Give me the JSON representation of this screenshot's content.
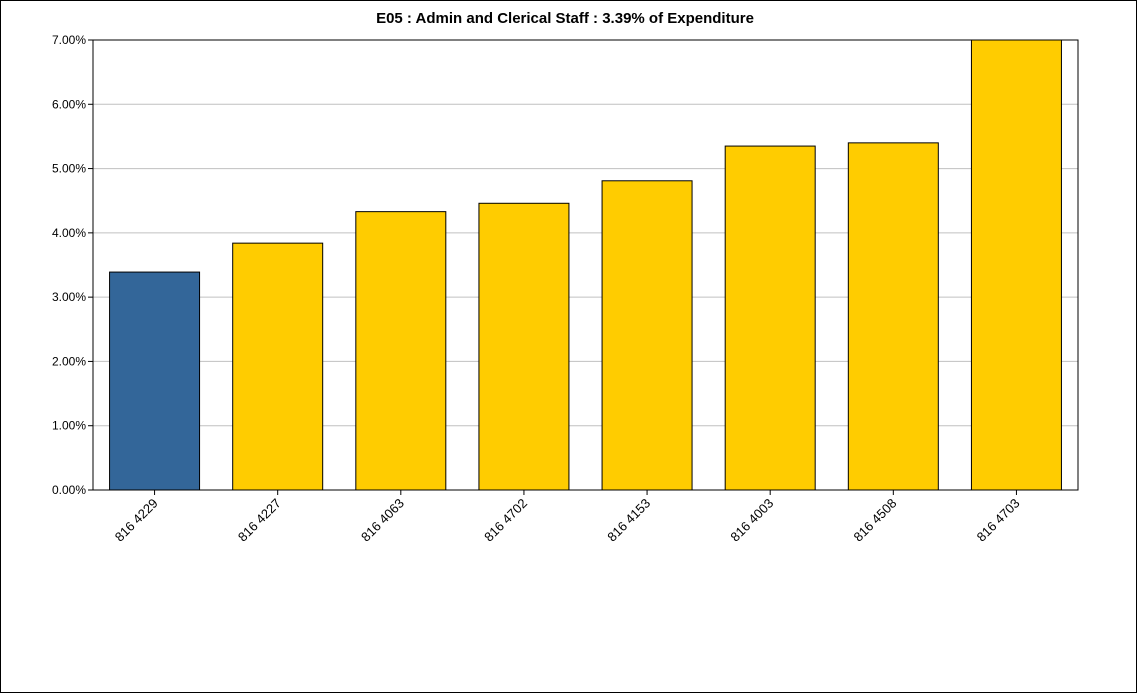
{
  "chart_data": {
    "type": "bar",
    "title": "E05 : Admin and Clerical Staff : 3.39% of Expenditure",
    "xlabel": "",
    "ylabel": "",
    "categories": [
      "816 4229",
      "816 4227",
      "816 4063",
      "816 4702",
      "816 4153",
      "816 4003",
      "816 4508",
      "816 4703"
    ],
    "values": [
      3.39,
      3.84,
      4.33,
      4.46,
      4.81,
      5.35,
      5.4,
      7.0
    ],
    "ylim": [
      0,
      7
    ],
    "y_ticks": [
      "0.00%",
      "1.00%",
      "2.00%",
      "3.00%",
      "4.00%",
      "5.00%",
      "6.00%",
      "7.00%"
    ],
    "grid": true,
    "legend": "none",
    "highlight_index": 0,
    "colors": {
      "highlight": "#336699",
      "bar": "#FFCC00",
      "grid": "#C0C0C0",
      "outline": "#000000"
    }
  }
}
